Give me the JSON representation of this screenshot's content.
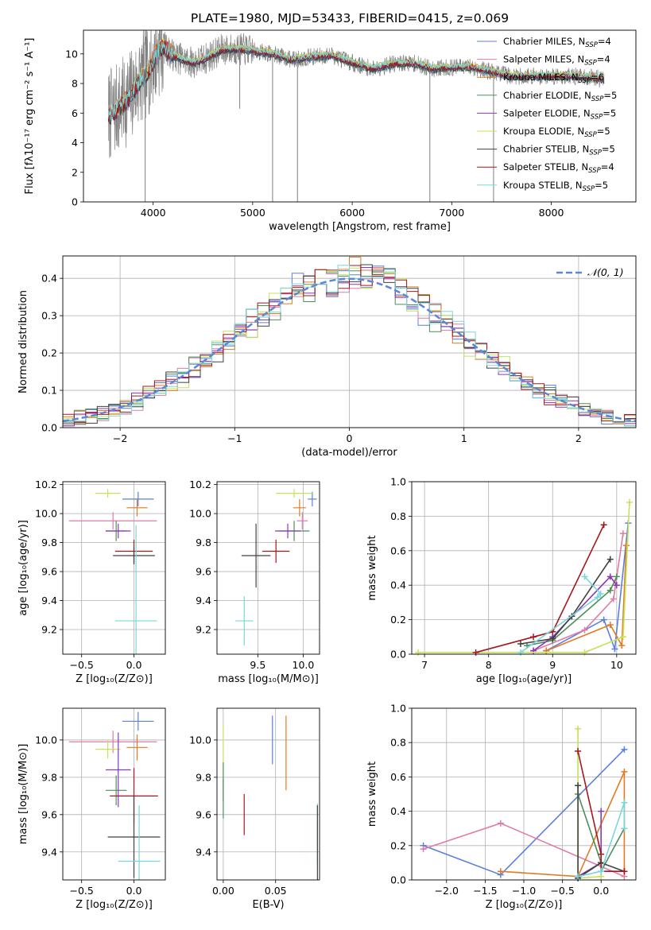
{
  "figure_title": "PLATE=1980, MJD=53433, FIBERID=0415, z=0.069",
  "colors": {
    "cm": "#5b7fdd",
    "sm": "#e07aa8",
    "km": "#e07b24",
    "ce": "#4e8f58",
    "se": "#8c36b8",
    "ke": "#c6e25a",
    "cs": "#404040",
    "ss": "#a8161c",
    "ks": "#79d7d9",
    "gauss": "#5b87d8",
    "obs": "#808080"
  },
  "legend_spectrum": [
    {
      "key": "cm",
      "pre": "Chabrier MILES, N",
      "sub": "SSP",
      "post": "=4"
    },
    {
      "key": "sm",
      "pre": "Salpeter MILES, N",
      "sub": "SSP",
      "post": "=4"
    },
    {
      "key": "km",
      "pre": "Kroupa MILES, N",
      "sub": "SSP",
      "post": "=6"
    },
    {
      "key": "ce",
      "pre": "Chabrier ELODIE, N",
      "sub": "SSP",
      "post": "=5"
    },
    {
      "key": "se",
      "pre": "Salpeter ELODIE, N",
      "sub": "SSP",
      "post": "=5"
    },
    {
      "key": "ke",
      "pre": "Kroupa ELODIE, N",
      "sub": "SSP",
      "post": "=5"
    },
    {
      "key": "cs",
      "pre": "Chabrier STELIB, N",
      "sub": "SSP",
      "post": "=5"
    },
    {
      "key": "ss",
      "pre": "Salpeter STELIB, N",
      "sub": "SSP",
      "post": "=4"
    },
    {
      "key": "ks",
      "pre": "Kroupa STELIB, N",
      "sub": "SSP",
      "post": "=5"
    }
  ],
  "legend_hist": "𝒩(0, 1)",
  "chart_data": [
    {
      "id": "spectrum",
      "type": "line",
      "xlabel": "wavelength [Angstrom, rest frame]",
      "ylabel": "Flux [fλ10⁻¹⁷ erg cm⁻² s⁻¹ A⁻¹]",
      "xlim": [
        3300,
        8850
      ],
      "ylim": [
        0,
        11.6
      ],
      "xticks": [
        4000,
        5000,
        6000,
        7000,
        8000
      ],
      "yticks": [
        0,
        2,
        4,
        6,
        8,
        10
      ],
      "model_continuum": [
        [
          3550,
          5.8
        ],
        [
          3650,
          6.3
        ],
        [
          3750,
          7.0
        ],
        [
          3850,
          8.0
        ],
        [
          3950,
          8.9
        ],
        [
          4050,
          10.2
        ],
        [
          4100,
          10.5
        ],
        [
          4200,
          9.9
        ],
        [
          4300,
          9.6
        ],
        [
          4400,
          9.4
        ],
        [
          4500,
          9.6
        ],
        [
          4700,
          10.3
        ],
        [
          4900,
          10.3
        ],
        [
          5000,
          10.2
        ],
        [
          5200,
          10.0
        ],
        [
          5400,
          9.6
        ],
        [
          5600,
          9.8
        ],
        [
          5800,
          9.9
        ],
        [
          6000,
          9.4
        ],
        [
          6200,
          9.0
        ],
        [
          6400,
          9.3
        ],
        [
          6600,
          9.4
        ],
        [
          6800,
          9.0
        ],
        [
          7000,
          9.1
        ],
        [
          7200,
          9.1
        ],
        [
          7400,
          8.8
        ],
        [
          7600,
          8.5
        ],
        [
          7800,
          8.5
        ],
        [
          8000,
          8.5
        ],
        [
          8200,
          8.5
        ],
        [
          8400,
          8.4
        ],
        [
          8530,
          8.3
        ]
      ],
      "dropouts": [
        [
          3920,
          0.0
        ],
        [
          4870,
          6.3
        ],
        [
          5200,
          0.0
        ],
        [
          5450,
          0.0
        ],
        [
          6780,
          0.0
        ],
        [
          7420,
          0.0
        ]
      ]
    },
    {
      "id": "residuals",
      "type": "histogram",
      "xlabel": "(data-model)/error",
      "ylabel": "Normed distribution",
      "xlim": [
        -2.5,
        2.5
      ],
      "ylim": [
        0,
        0.46
      ],
      "xticks": [
        -2,
        -1,
        0,
        1,
        2
      ],
      "yticks": [
        0.0,
        0.1,
        0.2,
        0.3,
        0.4
      ],
      "gaussian": {
        "mu": 0,
        "sigma": 1
      }
    },
    {
      "id": "age_vs_Z",
      "type": "errorbar",
      "xlabel": "Z [log₁₀(Z/Z⊙)]",
      "ylabel": "age  [log₁₀(age/yr)]",
      "xlim": [
        -0.68,
        0.3
      ],
      "ylim": [
        9.03,
        10.22
      ],
      "xticks": [
        -0.5,
        0.0
      ],
      "yticks": [
        9.2,
        9.4,
        9.6,
        9.8,
        10.0,
        10.2
      ],
      "points": [
        {
          "key": "cm",
          "x": 0.04,
          "xe": 0.15,
          "y": 10.1,
          "ye": 0.05
        },
        {
          "key": "sm",
          "x": -0.2,
          "xe": 0.42,
          "y": 9.95,
          "ye": 0.06
        },
        {
          "key": "km",
          "x": 0.03,
          "xe": 0.1,
          "y": 10.04,
          "ye": 0.06
        },
        {
          "key": "ke",
          "x": -0.25,
          "xe": 0.12,
          "y": 10.14,
          "ye": 0.03
        },
        {
          "key": "ce",
          "x": -0.17,
          "xe": 0.1,
          "y": 9.88,
          "ye": 0.07
        },
        {
          "key": "se",
          "x": -0.15,
          "xe": 0.12,
          "y": 9.88,
          "ye": 0.05
        },
        {
          "key": "ss",
          "x": 0.0,
          "xe": 0.18,
          "y": 9.74,
          "ye": 0.08
        },
        {
          "key": "cs",
          "x": 0.0,
          "xe": 0.2,
          "y": 9.71,
          "ye": 0.06
        },
        {
          "key": "ks",
          "x": 0.02,
          "xe": 0.2,
          "y": 9.26,
          "ye": 0.66
        }
      ]
    },
    {
      "id": "age_vs_mass",
      "type": "errorbar",
      "xlabel": "mass [log₁₀(M/M⊙)]",
      "ylabel": "",
      "xlim": [
        9.05,
        10.18
      ],
      "ylim": [
        9.03,
        10.22
      ],
      "xticks": [
        9.5,
        10.0
      ],
      "yticks": [
        9.2,
        9.4,
        9.6,
        9.8,
        10.0,
        10.2
      ],
      "points": [
        {
          "key": "cm",
          "x": 10.1,
          "xe": 0.05,
          "y": 10.1,
          "ye": 0.05
        },
        {
          "key": "sm",
          "x": 9.99,
          "xe": 0.06,
          "y": 9.95,
          "ye": 0.06
        },
        {
          "key": "km",
          "x": 9.96,
          "xe": 0.07,
          "y": 10.04,
          "ye": 0.06
        },
        {
          "key": "ke",
          "x": 9.9,
          "xe": 0.2,
          "y": 10.14,
          "ye": 0.03
        },
        {
          "key": "ce",
          "x": 9.9,
          "xe": 0.17,
          "y": 9.88,
          "ye": 0.07
        },
        {
          "key": "se",
          "x": 9.83,
          "xe": 0.14,
          "y": 9.88,
          "ye": 0.05
        },
        {
          "key": "ss",
          "x": 9.7,
          "xe": 0.15,
          "y": 9.74,
          "ye": 0.08
        },
        {
          "key": "cs",
          "x": 9.48,
          "xe": 0.16,
          "y": 9.71,
          "ye": 0.22
        },
        {
          "key": "ks",
          "x": 9.35,
          "xe": 0.1,
          "y": 9.26,
          "ye": 0.17
        }
      ]
    },
    {
      "id": "mass_weight_vs_age",
      "type": "line",
      "xlabel": "age  [log₁₀(age/yr)]",
      "ylabel": "mass weight",
      "xlim": [
        6.8,
        10.3
      ],
      "ylim": [
        0,
        1.0
      ],
      "xticks": [
        7,
        8,
        9,
        10
      ],
      "yticks": [
        0.0,
        0.2,
        0.4,
        0.6,
        0.8,
        1.0
      ],
      "series": [
        {
          "key": "cm",
          "x": [
            8.9,
            9.8,
            9.97,
            10.18
          ],
          "y": [
            0.02,
            0.2,
            0.03,
            0.76
          ]
        },
        {
          "key": "sm",
          "x": [
            8.7,
            9.5,
            9.95,
            10.1
          ],
          "y": [
            0.02,
            0.14,
            0.32,
            0.7
          ]
        },
        {
          "key": "km",
          "x": [
            8.9,
            9.9,
            10.08,
            10.15
          ],
          "y": [
            0.02,
            0.17,
            0.05,
            0.63
          ]
        },
        {
          "key": "ce",
          "x": [
            8.6,
            9.0,
            9.9,
            10.0
          ],
          "y": [
            0.05,
            0.08,
            0.37,
            0.45
          ]
        },
        {
          "key": "se",
          "x": [
            8.7,
            9.0,
            9.9,
            10.0
          ],
          "y": [
            0.02,
            0.1,
            0.45,
            0.4
          ]
        },
        {
          "key": "ke",
          "x": [
            6.9,
            9.5,
            10.1,
            10.2
          ],
          "y": [
            0.01,
            0.01,
            0.1,
            0.88
          ]
        },
        {
          "key": "cs",
          "x": [
            8.5,
            9.0,
            9.3,
            9.9
          ],
          "y": [
            0.06,
            0.09,
            0.22,
            0.55
          ]
        },
        {
          "key": "ss",
          "x": [
            7.8,
            8.7,
            9.0,
            9.8
          ],
          "y": [
            0.01,
            0.1,
            0.13,
            0.75
          ]
        },
        {
          "key": "ks",
          "x": [
            8.5,
            9.7,
            9.75,
            9.5
          ],
          "y": [
            0.01,
            0.33,
            0.35,
            0.45
          ]
        }
      ]
    },
    {
      "id": "mass_vs_Z",
      "type": "errorbar",
      "xlabel": "Z [log₁₀(Z/Z⊙)]",
      "ylabel": "mass [log₁₀(M/M⊙)]",
      "xlim": [
        -0.68,
        0.3
      ],
      "ylim": [
        9.25,
        10.17
      ],
      "xticks": [
        -0.5,
        0.0
      ],
      "yticks": [
        9.4,
        9.6,
        9.8,
        10.0
      ],
      "points": [
        {
          "key": "cm",
          "x": 0.04,
          "xe": 0.15,
          "y": 10.1,
          "ye": 0.05
        },
        {
          "key": "sm",
          "x": -0.2,
          "xe": 0.42,
          "y": 9.99,
          "ye": 0.06
        },
        {
          "key": "km",
          "x": 0.03,
          "xe": 0.1,
          "y": 9.96,
          "ye": 0.07
        },
        {
          "key": "ke",
          "x": -0.25,
          "xe": 0.12,
          "y": 9.95,
          "ye": 0.05
        },
        {
          "key": "ce",
          "x": -0.17,
          "xe": 0.1,
          "y": 9.73,
          "ye": 0.08
        },
        {
          "key": "se",
          "x": -0.15,
          "xe": 0.12,
          "y": 9.84,
          "ye": 0.2
        },
        {
          "key": "ss",
          "x": 0.0,
          "xe": 0.23,
          "y": 9.7,
          "ye": 0.15
        },
        {
          "key": "cs",
          "x": 0.0,
          "xe": 0.25,
          "y": 9.48,
          "ye": 0.22
        },
        {
          "key": "ks",
          "x": 0.05,
          "xe": 0.2,
          "y": 9.35,
          "ye": 0.3
        }
      ]
    },
    {
      "id": "ebv",
      "type": "errorbar",
      "xlabel": "E(B-V)",
      "ylabel": "",
      "xlim": [
        -0.006,
        0.092
      ],
      "ylim": [
        9.25,
        10.17
      ],
      "xticks": [
        0.0,
        0.05
      ],
      "yticks": [
        9.4,
        9.6,
        9.8,
        10.0
      ],
      "points": [
        {
          "key": "cm",
          "x": 0.047,
          "y": 10.0,
          "ye": 0.13
        },
        {
          "key": "km",
          "x": 0.06,
          "y": 9.93,
          "ye": 0.2
        },
        {
          "key": "ke",
          "x": 0.0,
          "y": 9.88,
          "ye": 0.2
        },
        {
          "key": "se",
          "x": 0.0,
          "y": 9.73,
          "ye": 0.06
        },
        {
          "key": "ce",
          "x": 0.0,
          "y": 9.73,
          "ye": 0.15
        },
        {
          "key": "ss",
          "x": 0.02,
          "y": 9.6,
          "ye": 0.11
        },
        {
          "key": "ks",
          "x": 0.09,
          "y": 9.5,
          "ye": 0.16
        },
        {
          "key": "cs",
          "x": 0.09,
          "y": 9.45,
          "ye": 0.2
        }
      ]
    },
    {
      "id": "mass_weight_vs_Z",
      "type": "line",
      "xlabel": "Z [log₁₀(Z/Z⊙)]",
      "ylabel": "mass weight",
      "xlim": [
        -2.45,
        0.45
      ],
      "ylim": [
        0,
        1.0
      ],
      "xticks": [
        -2.0,
        -1.5,
        -1.0,
        -0.5,
        0.0
      ],
      "yticks": [
        0.0,
        0.2,
        0.4,
        0.6,
        0.8,
        1.0
      ],
      "series": [
        {
          "key": "cm",
          "x": [
            -2.3,
            -1.3,
            0.3
          ],
          "y": [
            0.2,
            0.03,
            0.76
          ]
        },
        {
          "key": "sm",
          "x": [
            -2.3,
            -1.3,
            0.3
          ],
          "y": [
            0.18,
            0.33,
            0.02
          ]
        },
        {
          "key": "km",
          "x": [
            -1.3,
            -0.3,
            0.3,
            0.3
          ],
          "y": [
            0.05,
            0.02,
            0.63,
            0.05
          ]
        },
        {
          "key": "ce",
          "x": [
            -0.3,
            0.0,
            0.0,
            0.3
          ],
          "y": [
            0.5,
            0.1,
            0.05,
            0.3
          ]
        },
        {
          "key": "se",
          "x": [
            -0.3,
            0.0,
            0.0
          ],
          "y": [
            0.02,
            0.1,
            0.4
          ]
        },
        {
          "key": "ke",
          "x": [
            -0.3,
            -0.3,
            0.0
          ],
          "y": [
            0.88,
            0.01,
            0.02
          ]
        },
        {
          "key": "cs",
          "x": [
            -0.3,
            -0.3,
            0.0,
            0.3
          ],
          "y": [
            0.55,
            0.01,
            0.1,
            0.05
          ]
        },
        {
          "key": "ss",
          "x": [
            -0.3,
            0.0,
            0.0,
            0.3
          ],
          "y": [
            0.75,
            0.15,
            0.05,
            0.05
          ]
        },
        {
          "key": "ks",
          "x": [
            -0.3,
            0.0,
            0.3,
            0.3
          ],
          "y": [
            0.02,
            0.05,
            0.45,
            0.3
          ]
        }
      ]
    }
  ]
}
